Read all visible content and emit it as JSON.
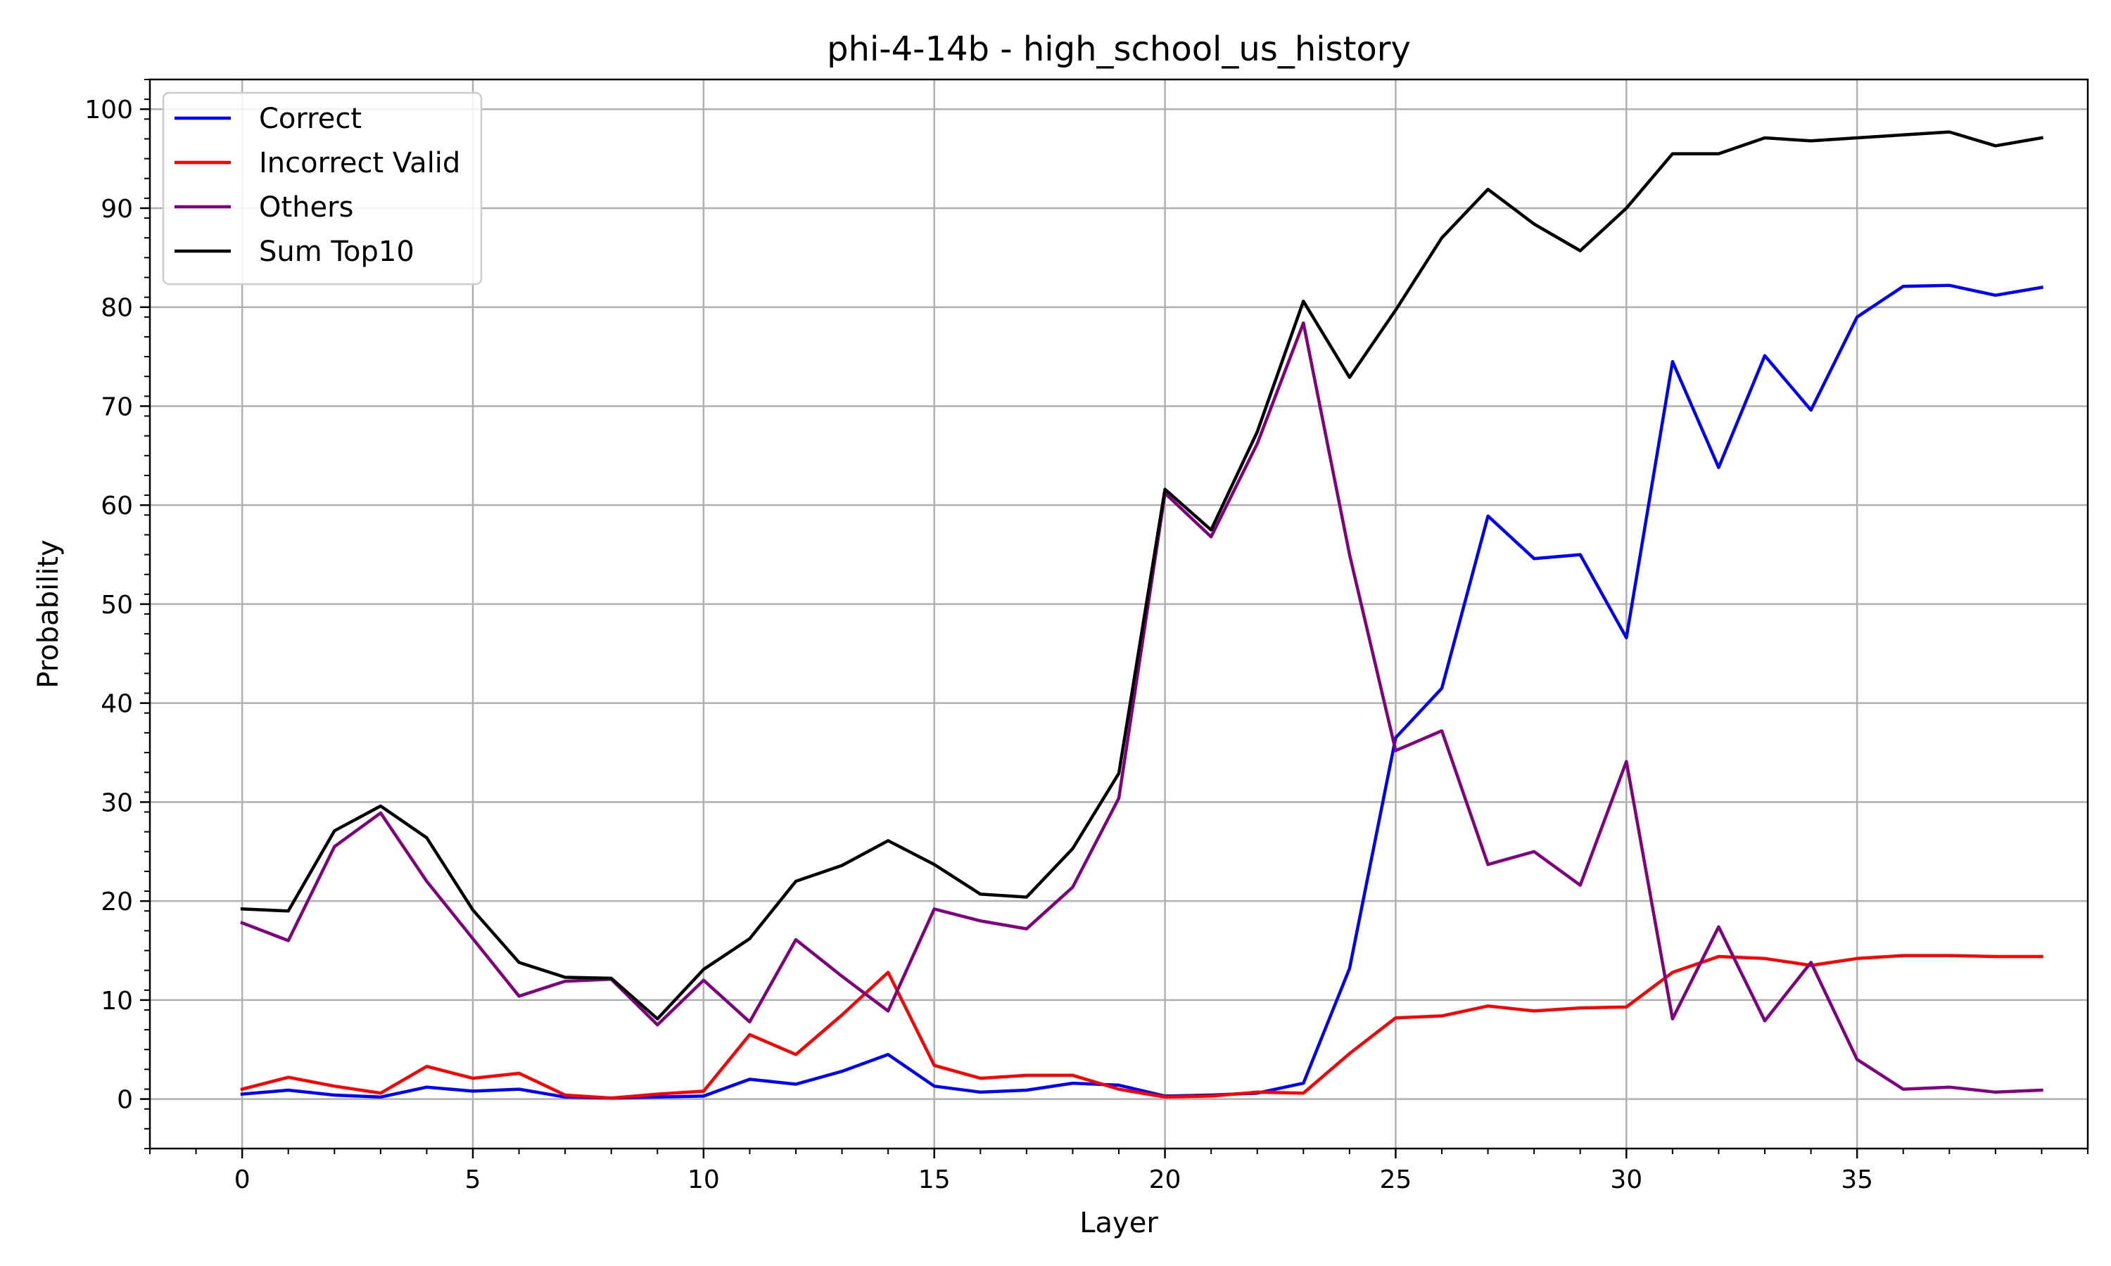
{
  "chart_data": {
    "type": "line",
    "title": "phi-4-14b - high_school_us_history",
    "xlabel": "Layer",
    "ylabel": "Probability",
    "xlim": [
      -2,
      40
    ],
    "ylim": [
      -5,
      103
    ],
    "xticks": [
      0,
      5,
      10,
      15,
      20,
      25,
      30,
      35
    ],
    "yticks": [
      0,
      10,
      20,
      30,
      40,
      50,
      60,
      70,
      80,
      90,
      100
    ],
    "grid": true,
    "legend": "top-left",
    "x": [
      0,
      1,
      2,
      3,
      4,
      5,
      6,
      7,
      8,
      9,
      10,
      11,
      12,
      13,
      14,
      15,
      16,
      17,
      18,
      19,
      20,
      21,
      22,
      23,
      24,
      25,
      26,
      27,
      28,
      29,
      30,
      31,
      32,
      33,
      34,
      35,
      36,
      37,
      38,
      39
    ],
    "series": [
      {
        "name": "Correct",
        "color": "#0000ff",
        "values": [
          0.5,
          0.9,
          0.4,
          0.2,
          1.2,
          0.8,
          1.0,
          0.2,
          0.1,
          0.2,
          0.3,
          2.0,
          1.5,
          2.8,
          4.5,
          1.3,
          0.7,
          0.9,
          1.6,
          1.4,
          0.3,
          0.4,
          0.6,
          1.6,
          13.2,
          36.5,
          41.5,
          58.9,
          54.6,
          55.0,
          46.6,
          74.5,
          63.8,
          75.1,
          69.6,
          79.0,
          82.1,
          82.2,
          81.2,
          82.0
        ]
      },
      {
        "name": "Incorrect Valid",
        "color": "#ff0000",
        "values": [
          1.0,
          2.2,
          1.3,
          0.6,
          3.3,
          2.1,
          2.6,
          0.4,
          0.1,
          0.5,
          0.8,
          6.5,
          4.5,
          8.5,
          12.8,
          3.4,
          2.1,
          2.4,
          2.4,
          1.0,
          0.2,
          0.3,
          0.7,
          0.6,
          4.6,
          8.2,
          8.4,
          9.4,
          8.9,
          9.2,
          9.3,
          12.8,
          14.4,
          14.2,
          13.5,
          14.2,
          14.5,
          14.5,
          14.4,
          14.4
        ]
      },
      {
        "name": "Others",
        "color": "#800080",
        "values": [
          17.8,
          16.0,
          25.5,
          28.9,
          22.0,
          16.2,
          10.4,
          11.9,
          12.1,
          7.5,
          12.0,
          7.8,
          16.1,
          12.4,
          8.9,
          19.2,
          18.0,
          17.2,
          21.4,
          30.4,
          61.2,
          56.8,
          66.2,
          78.4,
          55.0,
          35.2,
          37.2,
          23.7,
          25.0,
          21.6,
          34.1,
          8.1,
          17.4,
          7.9,
          13.8,
          4.0,
          1.0,
          1.2,
          0.7,
          0.9
        ]
      },
      {
        "name": "Sum Top10",
        "color": "#000000",
        "values": [
          19.2,
          19.0,
          27.1,
          29.6,
          26.4,
          19.1,
          13.8,
          12.3,
          12.2,
          8.1,
          13.1,
          16.2,
          22.0,
          23.6,
          26.1,
          23.7,
          20.7,
          20.4,
          25.3,
          32.9,
          61.6,
          57.5,
          67.4,
          80.6,
          72.9,
          79.7,
          87.0,
          91.9,
          88.4,
          85.7,
          90.0,
          95.5,
          95.5,
          97.1,
          96.8,
          97.1,
          97.4,
          97.7,
          96.3,
          97.1
        ]
      }
    ]
  }
}
